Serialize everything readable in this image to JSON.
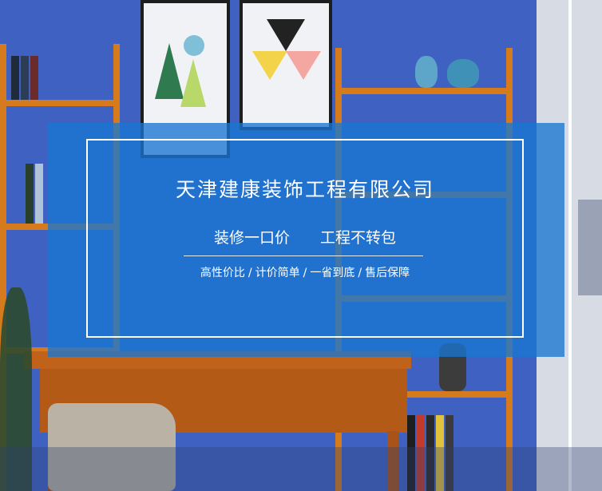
{
  "banner": {
    "company_name": "天津建康装饰工程有限公司",
    "slogans": [
      "装修一口价",
      "工程不转包"
    ],
    "features": [
      "高性价比",
      "计价简单",
      "一省到底",
      "售后保障"
    ],
    "separator": "/"
  },
  "colors": {
    "wall": "#3f61c2",
    "overlay": "#1876d2",
    "shelf": "#d67a1e",
    "text": "#ffffff"
  }
}
